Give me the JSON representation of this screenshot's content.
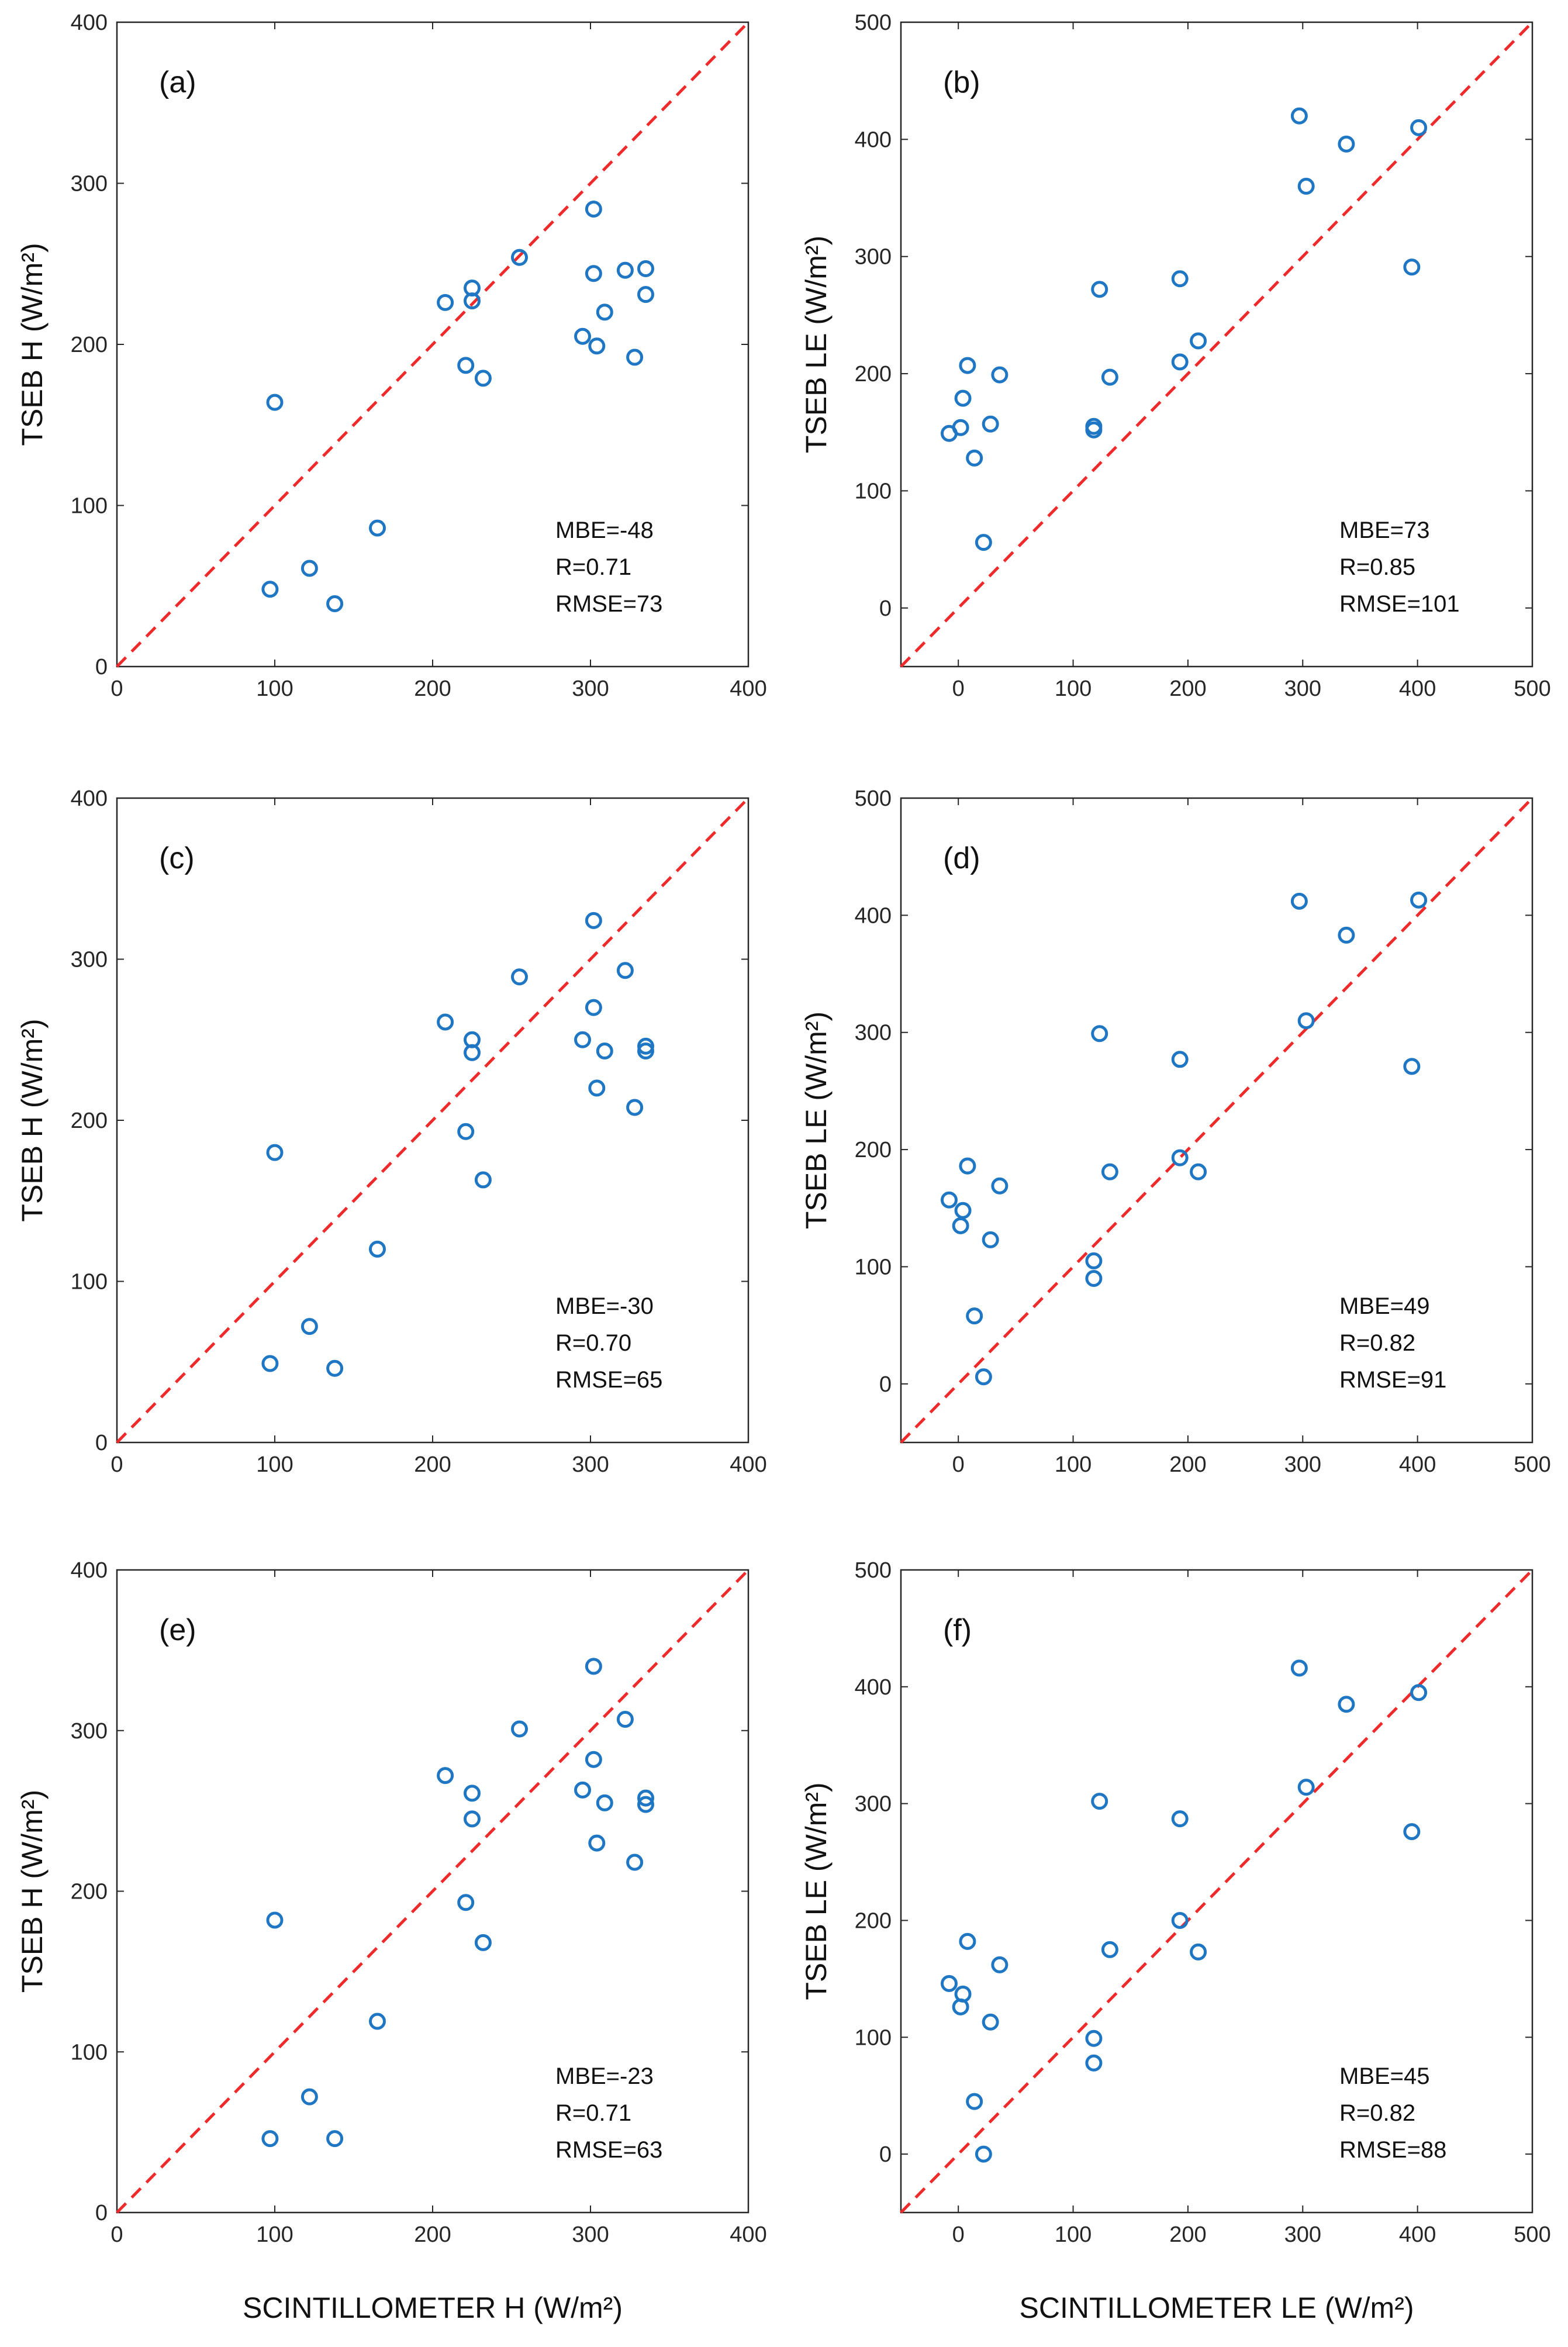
{
  "chart_data": [
    {
      "type": "scatter",
      "panel": "(a)",
      "ylabel": "TSEB H (W/m²)",
      "xlabel": "",
      "xlim": [
        0,
        400
      ],
      "ylim": [
        0,
        400
      ],
      "xticks": [
        0,
        100,
        200,
        300,
        400
      ],
      "yticks": [
        0,
        100,
        200,
        300,
        400
      ],
      "stats": [
        "MBE=-48",
        "R=0.71",
        "RMSE=73"
      ],
      "points": [
        [
          97,
          48
        ],
        [
          100,
          164
        ],
        [
          122,
          61
        ],
        [
          138,
          39
        ],
        [
          165,
          86
        ],
        [
          208,
          226
        ],
        [
          221,
          187
        ],
        [
          225,
          235
        ],
        [
          225,
          227
        ],
        [
          232,
          179
        ],
        [
          255,
          254
        ],
        [
          295,
          205
        ],
        [
          302,
          284
        ],
        [
          302,
          244
        ],
        [
          304,
          199
        ],
        [
          309,
          220
        ],
        [
          322,
          246
        ],
        [
          328,
          192
        ],
        [
          335,
          247
        ],
        [
          335,
          231
        ]
      ]
    },
    {
      "type": "scatter",
      "panel": "(b)",
      "ylabel": "TSEB LE (W/m²)",
      "xlabel": "",
      "xlim": [
        -50,
        500
      ],
      "ylim": [
        -50,
        500
      ],
      "xticks": [
        0,
        100,
        200,
        300,
        400,
        500
      ],
      "yticks": [
        0,
        100,
        200,
        300,
        400,
        500
      ],
      "stats": [
        "MBE=73",
        "R=0.85",
        "RMSE=101"
      ],
      "points": [
        [
          -8,
          149
        ],
        [
          2,
          154
        ],
        [
          4,
          179
        ],
        [
          8,
          207
        ],
        [
          14,
          128
        ],
        [
          22,
          56
        ],
        [
          28,
          157
        ],
        [
          36,
          199
        ],
        [
          118,
          155
        ],
        [
          118,
          152
        ],
        [
          123,
          272
        ],
        [
          132,
          197
        ],
        [
          193,
          281
        ],
        [
          193,
          210
        ],
        [
          209,
          228
        ],
        [
          297,
          420
        ],
        [
          303,
          360
        ],
        [
          338,
          396
        ],
        [
          395,
          291
        ],
        [
          401,
          410
        ]
      ]
    },
    {
      "type": "scatter",
      "panel": "(c)",
      "ylabel": "TSEB H (W/m²)",
      "xlabel": "",
      "xlim": [
        0,
        400
      ],
      "ylim": [
        0,
        400
      ],
      "xticks": [
        0,
        100,
        200,
        300,
        400
      ],
      "yticks": [
        0,
        100,
        200,
        300,
        400
      ],
      "stats": [
        "MBE=-30",
        "R=0.70",
        "RMSE=65"
      ],
      "points": [
        [
          97,
          49
        ],
        [
          100,
          180
        ],
        [
          122,
          72
        ],
        [
          138,
          46
        ],
        [
          165,
          120
        ],
        [
          208,
          261
        ],
        [
          221,
          193
        ],
        [
          225,
          250
        ],
        [
          225,
          242
        ],
        [
          232,
          163
        ],
        [
          255,
          289
        ],
        [
          295,
          250
        ],
        [
          302,
          324
        ],
        [
          302,
          270
        ],
        [
          304,
          220
        ],
        [
          309,
          243
        ],
        [
          322,
          293
        ],
        [
          328,
          208
        ],
        [
          335,
          246
        ],
        [
          335,
          243
        ]
      ]
    },
    {
      "type": "scatter",
      "panel": "(d)",
      "ylabel": "TSEB LE (W/m²)",
      "xlabel": "",
      "xlim": [
        -50,
        500
      ],
      "ylim": [
        -50,
        500
      ],
      "xticks": [
        0,
        100,
        200,
        300,
        400,
        500
      ],
      "yticks": [
        0,
        100,
        200,
        300,
        400,
        500
      ],
      "stats": [
        "MBE=49",
        "R=0.82",
        "RMSE=91"
      ],
      "points": [
        [
          -8,
          157
        ],
        [
          2,
          135
        ],
        [
          4,
          148
        ],
        [
          8,
          186
        ],
        [
          14,
          58
        ],
        [
          22,
          6
        ],
        [
          28,
          123
        ],
        [
          36,
          169
        ],
        [
          118,
          105
        ],
        [
          118,
          90
        ],
        [
          123,
          299
        ],
        [
          132,
          181
        ],
        [
          193,
          277
        ],
        [
          193,
          193
        ],
        [
          209,
          181
        ],
        [
          297,
          412
        ],
        [
          303,
          310
        ],
        [
          338,
          383
        ],
        [
          395,
          271
        ],
        [
          401,
          413
        ]
      ]
    },
    {
      "type": "scatter",
      "panel": "(e)",
      "ylabel": "TSEB H (W/m²)",
      "xlabel": "SCINTILLOMETER H (W/m²)",
      "xlim": [
        0,
        400
      ],
      "ylim": [
        0,
        400
      ],
      "xticks": [
        0,
        100,
        200,
        300,
        400
      ],
      "yticks": [
        0,
        100,
        200,
        300,
        400
      ],
      "stats": [
        "MBE=-23",
        "R=0.71",
        "RMSE=63"
      ],
      "points": [
        [
          97,
          46
        ],
        [
          100,
          182
        ],
        [
          122,
          72
        ],
        [
          138,
          46
        ],
        [
          165,
          119
        ],
        [
          208,
          272
        ],
        [
          221,
          193
        ],
        [
          225,
          261
        ],
        [
          225,
          245
        ],
        [
          232,
          168
        ],
        [
          255,
          301
        ],
        [
          295,
          263
        ],
        [
          302,
          340
        ],
        [
          302,
          282
        ],
        [
          304,
          230
        ],
        [
          309,
          255
        ],
        [
          322,
          307
        ],
        [
          328,
          218
        ],
        [
          335,
          258
        ],
        [
          335,
          254
        ]
      ]
    },
    {
      "type": "scatter",
      "panel": "(f)",
      "ylabel": "TSEB LE (W/m²)",
      "xlabel": "SCINTILLOMETER LE (W/m²)",
      "xlim": [
        -50,
        500
      ],
      "ylim": [
        -50,
        500
      ],
      "xticks": [
        0,
        100,
        200,
        300,
        400,
        500
      ],
      "yticks": [
        0,
        100,
        200,
        300,
        400,
        500
      ],
      "stats": [
        "MBE=45",
        "R=0.82",
        "RMSE=88"
      ],
      "points": [
        [
          -8,
          146
        ],
        [
          2,
          126
        ],
        [
          4,
          137
        ],
        [
          8,
          182
        ],
        [
          14,
          45
        ],
        [
          22,
          0
        ],
        [
          28,
          113
        ],
        [
          36,
          162
        ],
        [
          118,
          99
        ],
        [
          118,
          78
        ],
        [
          123,
          302
        ],
        [
          132,
          175
        ],
        [
          193,
          287
        ],
        [
          193,
          200
        ],
        [
          209,
          173
        ],
        [
          297,
          416
        ],
        [
          303,
          314
        ],
        [
          338,
          385
        ],
        [
          395,
          276
        ],
        [
          401,
          395
        ]
      ]
    }
  ],
  "colors": {
    "marker": "#1f77c4",
    "identity_line": "#ee2a2a",
    "axes": "#262626"
  }
}
